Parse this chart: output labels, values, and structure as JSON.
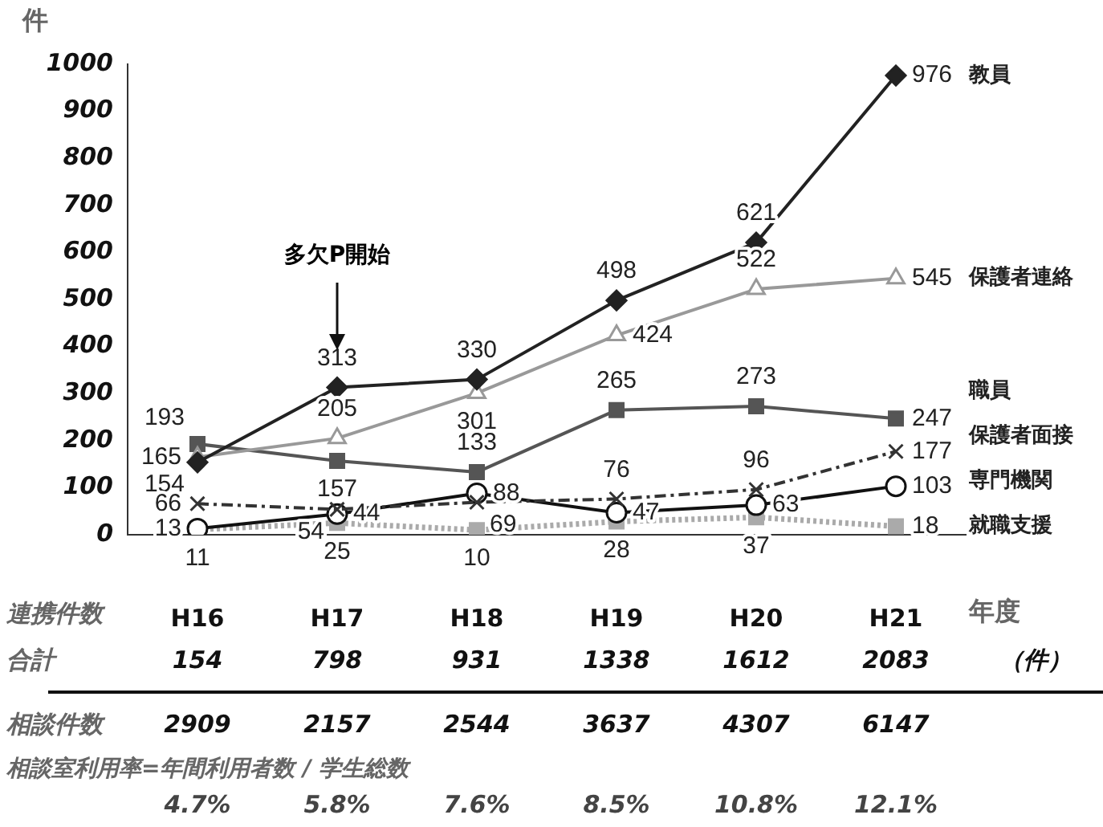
{
  "chart_data": {
    "type": "line",
    "xlabel": "年度",
    "ylabel": "件",
    "categories": [
      "H16",
      "H17",
      "H18",
      "H19",
      "H20",
      "H21"
    ],
    "ylim": [
      0,
      1000
    ],
    "yticks": [
      0,
      100,
      200,
      300,
      400,
      500,
      600,
      700,
      800,
      900,
      1000
    ],
    "grid": false,
    "legend": false,
    "data_labels": true,
    "series": [
      {
        "name": "教員",
        "color": "#222222",
        "marker": "diamond",
        "line_style": "solid",
        "values": [
          154,
          313,
          330,
          498,
          621,
          976
        ]
      },
      {
        "name": "保護者連絡",
        "color": "#999999",
        "marker": "triangle",
        "line_style": "solid",
        "values": [
          165,
          205,
          301,
          424,
          522,
          545
        ]
      },
      {
        "name": "職員",
        "color": "#555555",
        "marker": "square",
        "line_style": "solid",
        "values": [
          193,
          157,
          133,
          265,
          273,
          247
        ]
      },
      {
        "name": "保護者面接",
        "color": "#333333",
        "marker": "cross",
        "line_style": "dashed",
        "values": [
          66,
          54,
          69,
          76,
          96,
          177
        ]
      },
      {
        "name": "専門機関",
        "color": "#111111",
        "marker": "circle",
        "line_style": "solid",
        "values": [
          13,
          44,
          88,
          47,
          63,
          103
        ]
      },
      {
        "name": "就職支援",
        "color": "#aaaaaa",
        "marker": "square",
        "line_style": "dotted",
        "values": [
          11,
          25,
          10,
          28,
          37,
          18
        ]
      }
    ],
    "totals": [
      "154",
      "798",
      "931",
      "1338",
      "1612",
      "2083"
    ],
    "annotations": [
      "多欠P開始",
      "連携件数",
      "合計",
      "（件）",
      "相談件数",
      "2909",
      "2157",
      "2544",
      "3637",
      "4307",
      "6147",
      "相談室利用率=年間利用者数 / 学生総数",
      "4.7%",
      "5.8%",
      "7.6%",
      "8.5%",
      "10.8%",
      "12.1%"
    ]
  }
}
